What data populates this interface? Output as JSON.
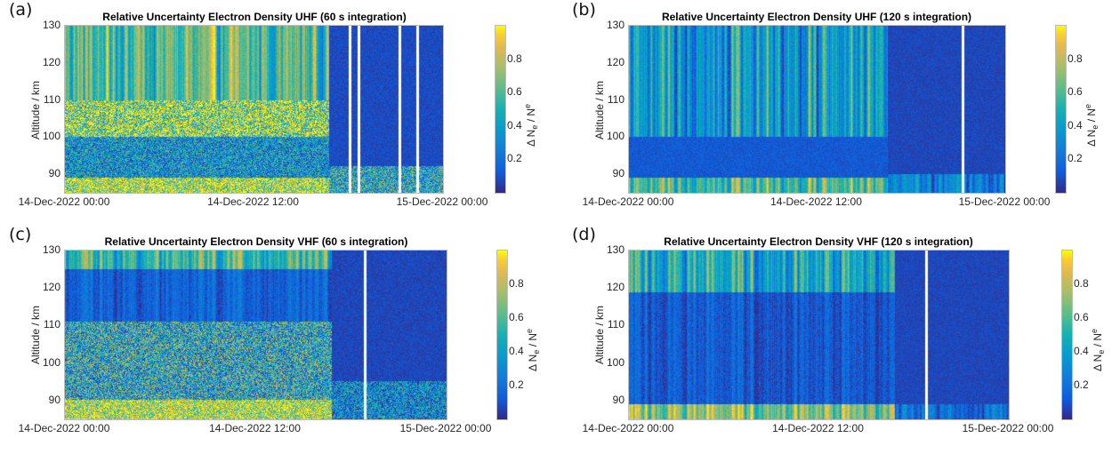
{
  "chart_data": [
    {
      "type": "heatmap",
      "panel_label": "(a)",
      "title": "Relative Uncertainty Electron Density UHF (60 s integration)",
      "ylabel": "Altitude / km",
      "colorbar_label": {
        "prefix": "Δ N",
        "sub1": "e",
        "mid": " / N",
        "sub2": "e"
      },
      "colormap": "parula",
      "clim": [
        0,
        1
      ],
      "colorbar_ticks": [
        "0.2",
        "0.4",
        "0.6",
        "0.8"
      ],
      "colorbar_tick_values": [
        0.2,
        0.4,
        0.6,
        0.8
      ],
      "xlim_hours": [
        0,
        24
      ],
      "x_tick_labels": [
        "14-Dec-2022 00:00",
        "14-Dec-2022 12:00",
        "15-Dec-2022 00:00"
      ],
      "x_tick_hours": [
        0,
        12,
        24
      ],
      "ylim": [
        85,
        130
      ],
      "y_tick_labels": [
        "90",
        "100",
        "110",
        "120",
        "130"
      ],
      "y_tick_values": [
        90,
        100,
        110,
        120,
        130
      ],
      "data_gaps_hours": [
        18.0,
        18.6,
        21.2,
        22.3
      ],
      "regions": [
        {
          "t0": 0,
          "t1": 16.8,
          "z0": 110,
          "z1": 130,
          "level": 0.6,
          "noise": 0.45,
          "streaks": true
        },
        {
          "t0": 0,
          "t1": 16.8,
          "z0": 100,
          "z1": 110,
          "level": 0.75,
          "noise": 0.5,
          "speckle": true
        },
        {
          "t0": 0,
          "t1": 16.8,
          "z0": 89,
          "z1": 100,
          "level": 0.35,
          "noise": 0.35,
          "speckle": true
        },
        {
          "t0": 0,
          "t1": 16.8,
          "z0": 85,
          "z1": 89,
          "level": 0.8,
          "noise": 0.4,
          "speckle": true
        },
        {
          "t0": 16.8,
          "t1": 24,
          "z0": 85,
          "z1": 130,
          "level": 0.08,
          "noise": 0.1
        },
        {
          "t0": 16.8,
          "t1": 24,
          "z0": 85,
          "z1": 92,
          "level": 0.45,
          "noise": 0.4,
          "speckle": true
        }
      ]
    },
    {
      "type": "heatmap",
      "panel_label": "(b)",
      "title": "Relative Uncertainty Electron Density UHF (120 s integration)",
      "ylabel": "Altitude / km",
      "colorbar_label": {
        "prefix": "Δ N",
        "sub1": "e",
        "mid": " / N",
        "sub2": "e"
      },
      "colormap": "parula",
      "clim": [
        0,
        1
      ],
      "colorbar_ticks": [
        "0.2",
        "0.4",
        "0.6",
        "0.8"
      ],
      "colorbar_tick_values": [
        0.2,
        0.4,
        0.6,
        0.8
      ],
      "xlim_hours": [
        0,
        24
      ],
      "x_tick_labels": [
        "14-Dec-2022 00:00",
        "14-Dec-2022 12:00",
        "15-Dec-2022 00:00"
      ],
      "x_tick_hours": [
        0,
        12,
        24
      ],
      "ylim": [
        85,
        130
      ],
      "y_tick_labels": [
        "90",
        "100",
        "110",
        "120",
        "130"
      ],
      "y_tick_values": [
        90,
        100,
        110,
        120,
        130
      ],
      "data_gaps_hours": [
        21.2
      ],
      "regions": [
        {
          "t0": 0,
          "t1": 16.5,
          "z0": 100,
          "z1": 130,
          "level": 0.4,
          "noise": 0.5,
          "streaks": true
        },
        {
          "t0": 0,
          "t1": 16.5,
          "z0": 89,
          "z1": 100,
          "level": 0.12,
          "noise": 0.12
        },
        {
          "t0": 0,
          "t1": 16.5,
          "z0": 85,
          "z1": 89,
          "level": 0.6,
          "noise": 0.45,
          "streaks": true
        },
        {
          "t0": 16.5,
          "t1": 24,
          "z0": 85,
          "z1": 130,
          "level": 0.07,
          "noise": 0.08
        },
        {
          "t0": 16.5,
          "t1": 24,
          "z0": 85,
          "z1": 90,
          "level": 0.25,
          "noise": 0.3,
          "streaks": true
        }
      ]
    },
    {
      "type": "heatmap",
      "panel_label": "(c)",
      "title": "Relative Uncertainty Electron Density VHF (60 s integration)",
      "ylabel": "Altitude / km",
      "colorbar_label": {
        "prefix": "Δ N",
        "sub1": "e",
        "mid": " / N",
        "sub2": "e"
      },
      "colormap": "parula",
      "clim": [
        0,
        1
      ],
      "colorbar_ticks": [
        "0.2",
        "0.4",
        "0.6",
        "0.8"
      ],
      "colorbar_tick_values": [
        0.2,
        0.4,
        0.6,
        0.8
      ],
      "xlim_hours": [
        0,
        24
      ],
      "x_tick_labels": [
        "14-Dec-2022 00:00",
        "14-Dec-2022 12:00",
        "15-Dec-2022 00:00"
      ],
      "x_tick_hours": [
        0,
        12,
        24
      ],
      "ylim": [
        85,
        130
      ],
      "y_tick_labels": [
        "90",
        "100",
        "110",
        "120",
        "130"
      ],
      "y_tick_values": [
        90,
        100,
        110,
        120,
        130
      ],
      "data_gaps_hours": [
        18.8
      ],
      "regions": [
        {
          "t0": 0,
          "t1": 16.8,
          "z0": 125,
          "z1": 130,
          "level": 0.55,
          "noise": 0.4,
          "streaks": true
        },
        {
          "t0": 0,
          "t1": 16.8,
          "z0": 111,
          "z1": 125,
          "level": 0.15,
          "noise": 0.15,
          "streaks": true
        },
        {
          "t0": 0,
          "t1": 16.8,
          "z0": 90,
          "z1": 111,
          "level": 0.45,
          "noise": 0.45,
          "speckle": true
        },
        {
          "t0": 0,
          "t1": 16.8,
          "z0": 85,
          "z1": 90,
          "level": 0.8,
          "noise": 0.35,
          "speckle": true
        },
        {
          "t0": 16.8,
          "t1": 24,
          "z0": 85,
          "z1": 130,
          "level": 0.07,
          "noise": 0.1
        },
        {
          "t0": 16.8,
          "t1": 24,
          "z0": 85,
          "z1": 95,
          "level": 0.3,
          "noise": 0.35,
          "speckle": true
        }
      ]
    },
    {
      "type": "heatmap",
      "panel_label": "(d)",
      "title": "Relative Uncertainty Electron Density VHF (120 s integration)",
      "ylabel": "Altitude / km",
      "colorbar_label": {
        "prefix": "Δ N",
        "sub1": "e",
        "mid": " / N",
        "sub2": "e"
      },
      "colormap": "parula",
      "clim": [
        0,
        1
      ],
      "colorbar_ticks": [
        "0.2",
        "0.4",
        "0.6",
        "0.8"
      ],
      "colorbar_tick_values": [
        0.2,
        0.4,
        0.6,
        0.8
      ],
      "xlim_hours": [
        0,
        24
      ],
      "x_tick_labels": [
        "14-Dec-2022 00:00",
        "14-Dec-2022 12:00",
        "15-Dec-2022 00:00"
      ],
      "x_tick_hours": [
        0,
        12,
        24
      ],
      "ylim": [
        85,
        130
      ],
      "y_tick_labels": [
        "90",
        "100",
        "110",
        "120",
        "130"
      ],
      "y_tick_values": [
        90,
        100,
        110,
        120,
        130
      ],
      "data_gaps_hours": [
        18.7
      ],
      "regions": [
        {
          "t0": 0,
          "t1": 16.8,
          "z0": 119,
          "z1": 130,
          "level": 0.45,
          "noise": 0.45,
          "streaks": true
        },
        {
          "t0": 0,
          "t1": 16.8,
          "z0": 89,
          "z1": 119,
          "level": 0.12,
          "noise": 0.14,
          "streaks": true
        },
        {
          "t0": 0,
          "t1": 16.8,
          "z0": 85,
          "z1": 89,
          "level": 0.7,
          "noise": 0.4,
          "streaks": true
        },
        {
          "t0": 16.8,
          "t1": 24,
          "z0": 85,
          "z1": 130,
          "level": 0.07,
          "noise": 0.08
        },
        {
          "t0": 16.8,
          "t1": 24,
          "z0": 85,
          "z1": 89,
          "level": 0.2,
          "noise": 0.25,
          "streaks": true
        }
      ]
    }
  ]
}
